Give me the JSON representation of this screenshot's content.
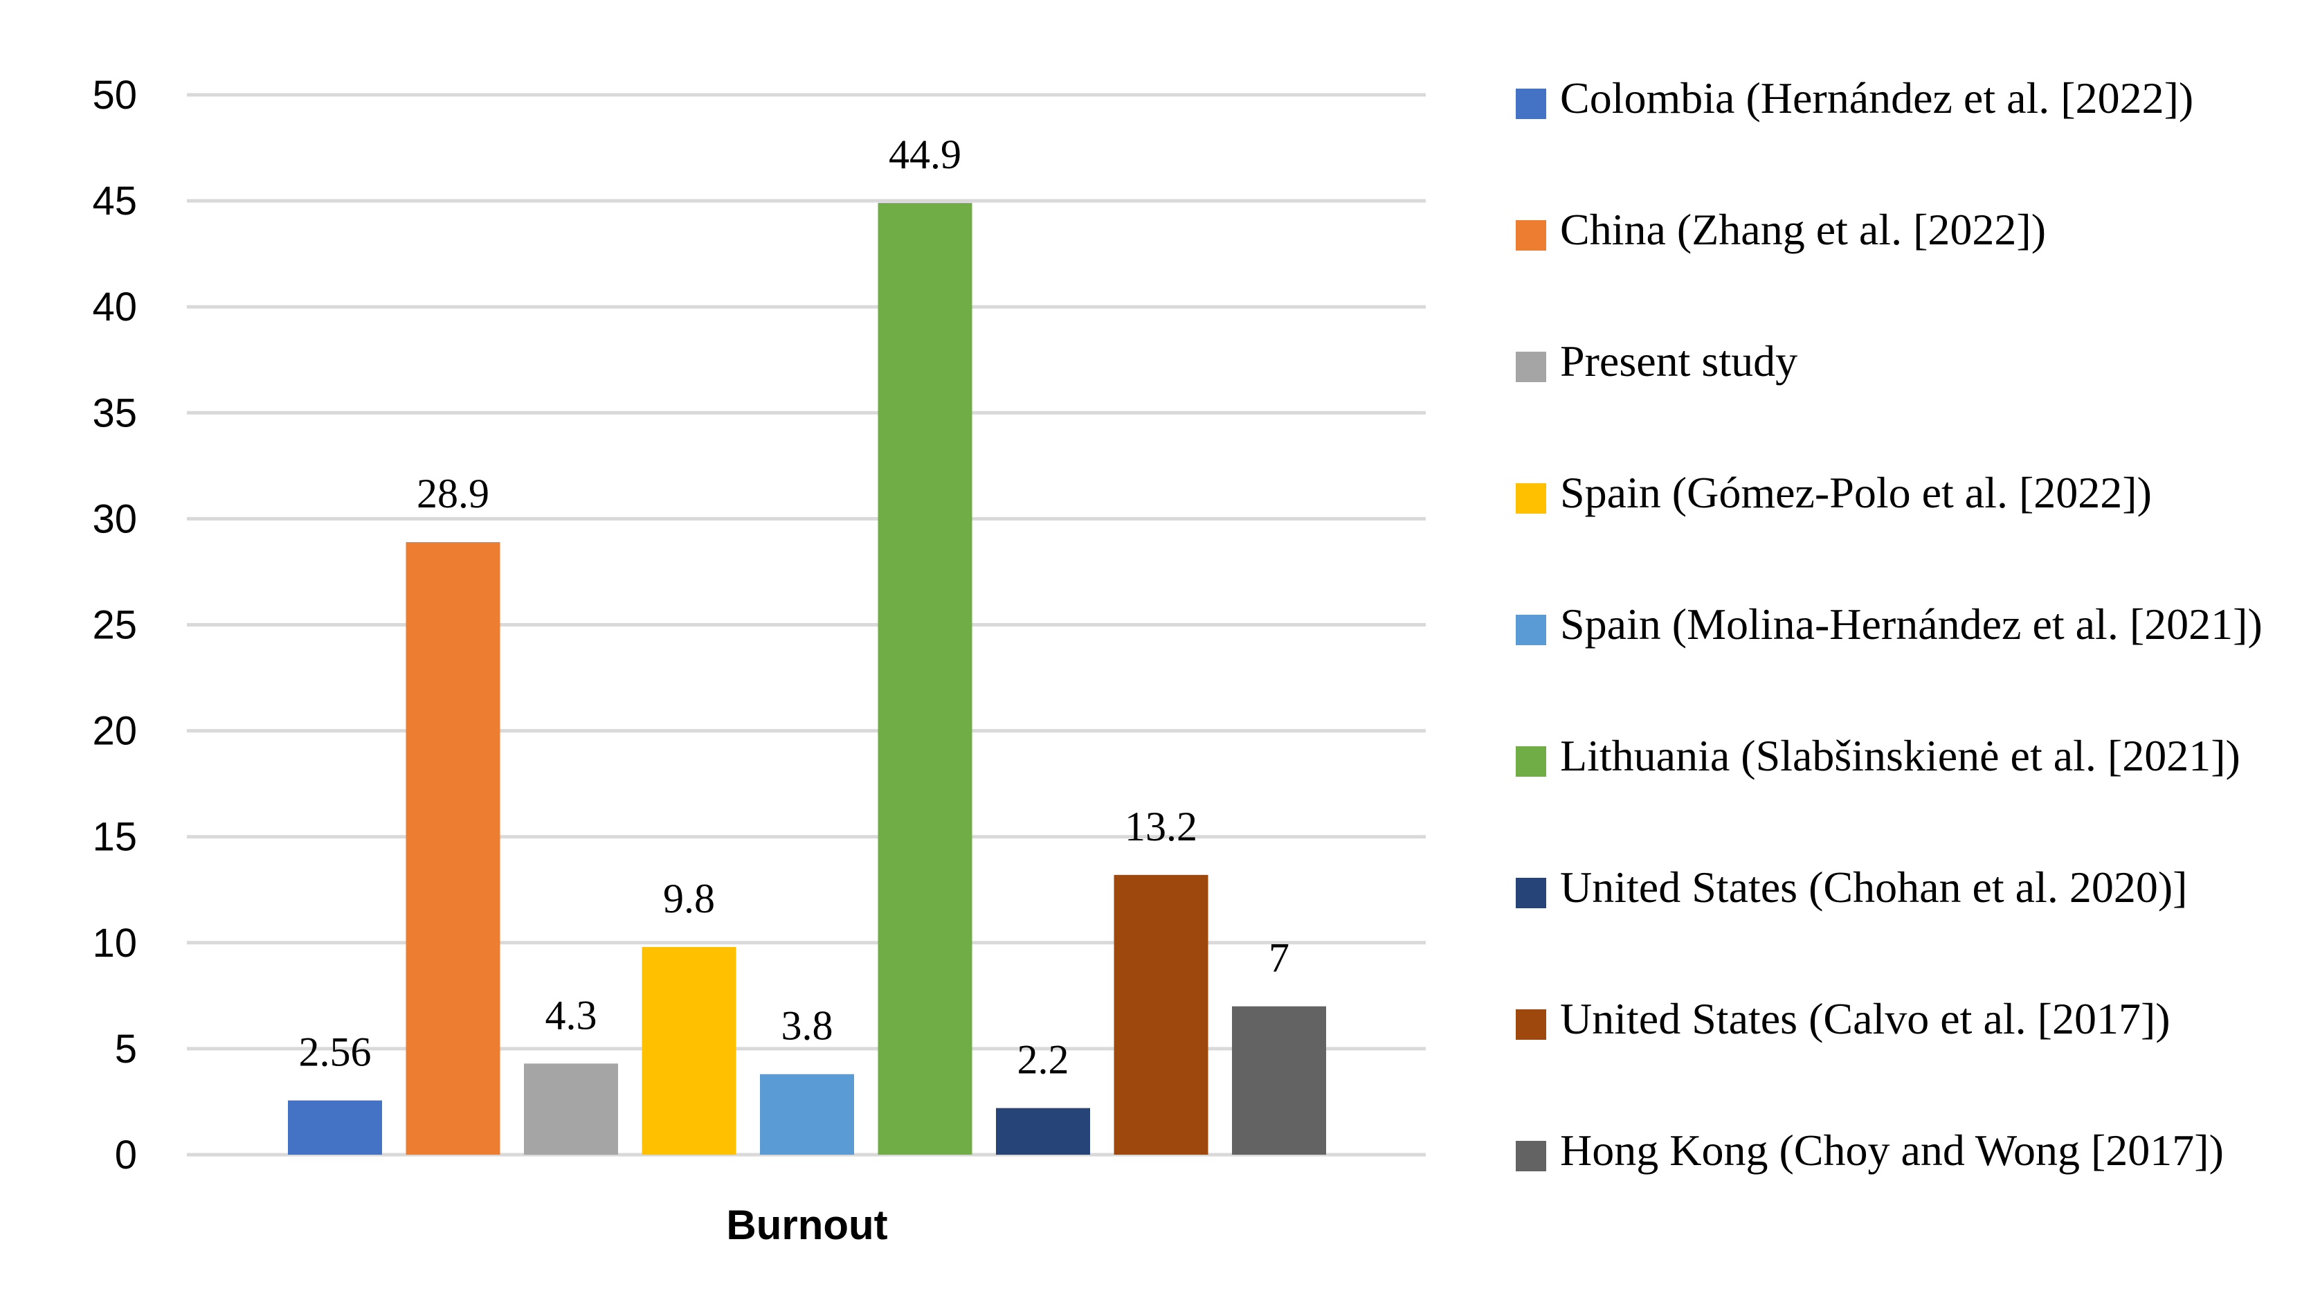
{
  "chart_data": {
    "type": "bar",
    "categories": [
      "Burnout"
    ],
    "xlabel": "",
    "ylabel": "",
    "ylim": [
      0,
      50
    ],
    "yticks": [
      0,
      5,
      10,
      15,
      20,
      25,
      30,
      35,
      40,
      45,
      50
    ],
    "grid": true,
    "legend_position": "right",
    "data_labels": true,
    "series": [
      {
        "name": "Colombia (Hernández et al. [2022])",
        "values": [
          2.56
        ],
        "label": "2.56",
        "color": "#4472C4"
      },
      {
        "name": "China (Zhang et al. [2022])",
        "values": [
          28.9
        ],
        "label": "28.9",
        "color": "#ED7D31"
      },
      {
        "name": "Present study",
        "values": [
          4.3
        ],
        "label": "4.3",
        "color": "#A5A5A5"
      },
      {
        "name": "Spain (Gómez-Polo et al. [2022])",
        "values": [
          9.8
        ],
        "label": "9.8",
        "color": "#FFC000"
      },
      {
        "name": "Spain (Molina-Hernández et al. [2021])",
        "values": [
          3.8
        ],
        "label": "3.8",
        "color": "#5B9BD5"
      },
      {
        "name": "Lithuania (Slabšinskienė et al. [2021])",
        "values": [
          44.9
        ],
        "label": "44.9",
        "color": "#70AD47"
      },
      {
        "name": "United States (Chohan et al. 2020)]",
        "values": [
          2.2
        ],
        "label": "2.2",
        "color": "#264478"
      },
      {
        "name": "United States (Calvo et al. [2017])",
        "values": [
          13.2
        ],
        "label": "13.2",
        "color": "#9E480E"
      },
      {
        "name": "Hong Kong (Choy and Wong [2017])",
        "values": [
          7
        ],
        "label": "7",
        "color": "#636363"
      }
    ]
  }
}
